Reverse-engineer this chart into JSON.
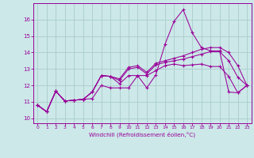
{
  "xlabel": "Windchill (Refroidissement éolien,°C)",
  "background_color": "#cce8e8",
  "grid_color": "#aacccc",
  "line_color": "#990099",
  "x_ticks": [
    0,
    1,
    2,
    3,
    4,
    5,
    6,
    7,
    8,
    9,
    10,
    11,
    12,
    13,
    14,
    15,
    16,
    17,
    18,
    19,
    20,
    21,
    22,
    23
  ],
  "y_ticks": [
    10,
    11,
    12,
    13,
    14,
    15,
    16
  ],
  "xlim": [
    -0.5,
    23.5
  ],
  "ylim": [
    9.7,
    17.0
  ],
  "series": [
    [
      10.8,
      10.4,
      11.65,
      11.05,
      11.1,
      11.15,
      11.2,
      12.0,
      11.85,
      11.85,
      11.85,
      12.6,
      11.85,
      12.65,
      14.5,
      15.9,
      16.6,
      15.2,
      14.3,
      14.1,
      14.1,
      11.6,
      11.55,
      12.0
    ],
    [
      10.8,
      10.4,
      11.65,
      11.05,
      11.1,
      11.15,
      11.6,
      12.6,
      12.55,
      12.1,
      12.6,
      12.6,
      12.6,
      12.9,
      13.2,
      13.3,
      13.2,
      13.25,
      13.3,
      13.15,
      13.15,
      12.55,
      11.55,
      12.0
    ],
    [
      10.8,
      10.4,
      11.65,
      11.05,
      11.1,
      11.15,
      11.6,
      12.6,
      12.55,
      12.3,
      13.0,
      13.1,
      12.7,
      13.25,
      13.4,
      13.5,
      13.6,
      13.75,
      13.9,
      14.05,
      14.05,
      13.5,
      12.5,
      12.0
    ],
    [
      10.8,
      10.4,
      11.65,
      11.05,
      11.1,
      11.15,
      11.6,
      12.6,
      12.55,
      12.4,
      13.1,
      13.2,
      12.8,
      13.35,
      13.5,
      13.65,
      13.8,
      14.0,
      14.2,
      14.3,
      14.3,
      14.0,
      13.2,
      12.0
    ]
  ]
}
